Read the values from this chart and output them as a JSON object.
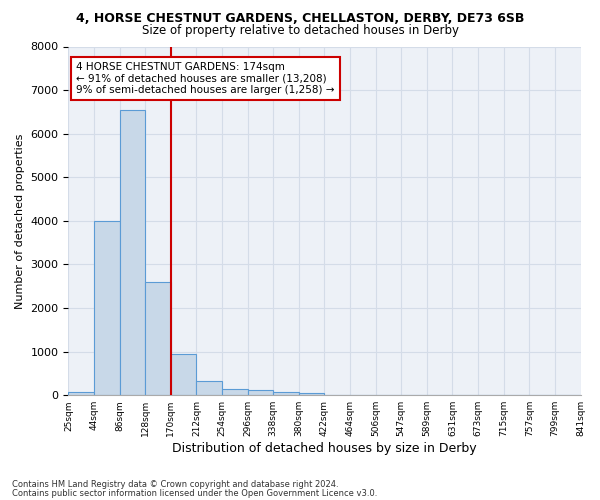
{
  "title1": "4, HORSE CHESTNUT GARDENS, CHELLASTON, DERBY, DE73 6SB",
  "title2": "Size of property relative to detached houses in Derby",
  "xlabel": "Distribution of detached houses by size in Derby",
  "ylabel": "Number of detached properties",
  "bar_values": [
    75,
    4000,
    6550,
    2600,
    950,
    330,
    140,
    110,
    70,
    50,
    0,
    0,
    0,
    0,
    0,
    0,
    0,
    0,
    0,
    0
  ],
  "tick_labels": [
    "25sqm",
    "44sqm",
    "86sqm",
    "128sqm",
    "170sqm",
    "212sqm",
    "254sqm",
    "296sqm",
    "338sqm",
    "380sqm",
    "422sqm",
    "464sqm",
    "506sqm",
    "547sqm",
    "589sqm",
    "631sqm",
    "673sqm",
    "715sqm",
    "757sqm",
    "799sqm",
    "841sqm"
  ],
  "bar_color": "#c8d8e8",
  "bar_edge_color": "#5b9bd5",
  "vline_bar_index": 4,
  "vline_color": "#cc0000",
  "annotation_text": "4 HORSE CHESTNUT GARDENS: 174sqm\n← 91% of detached houses are smaller (13,208)\n9% of semi-detached houses are larger (1,258) →",
  "annotation_box_color": "#cc0000",
  "ylim": [
    0,
    8000
  ],
  "yticks": [
    0,
    1000,
    2000,
    3000,
    4000,
    5000,
    6000,
    7000,
    8000
  ],
  "grid_color": "#d4dce8",
  "footer1": "Contains HM Land Registry data © Crown copyright and database right 2024.",
  "footer2": "Contains public sector information licensed under the Open Government Licence v3.0.",
  "bg_color": "#edf1f7",
  "title1_fontsize": 9,
  "title2_fontsize": 8.5
}
